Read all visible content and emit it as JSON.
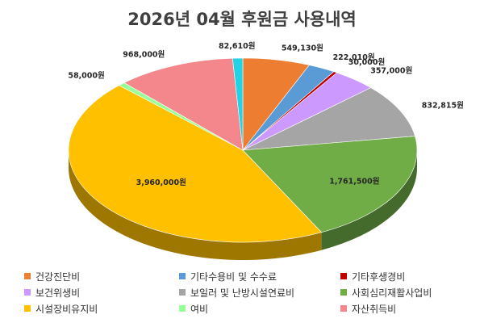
{
  "chart_data": {
    "type": "pie",
    "title": "2026년 04월 후원금 사용내역",
    "unit": "원",
    "legend_position": "bottom",
    "slices": [
      {
        "name": "건강진단비",
        "value": 549130,
        "label": "549,130원",
        "color": "#ED7D31"
      },
      {
        "name": "기타수용비 및 수수료",
        "value": 222010,
        "label": "222,010원",
        "color": "#5B9BD5"
      },
      {
        "name": "기타후생경비",
        "value": 30000,
        "label": "30,000원",
        "color": "#C00000"
      },
      {
        "name": "보건위생비",
        "value": 357000,
        "label": "357,000원",
        "color": "#CC99FF"
      },
      {
        "name": "보일러 및 난방시설연료비",
        "value": 832815,
        "label": "832,815원",
        "color": "#A5A5A5"
      },
      {
        "name": "사회심리재활사업비",
        "value": 1761500,
        "label": "1,761,500원",
        "color": "#70AD47"
      },
      {
        "name": "시설장비유지비",
        "value": 3960000,
        "label": "3,960,000원",
        "color": "#FFC000"
      },
      {
        "name": "여비",
        "value": 58000,
        "label": "58,000원",
        "color": "#99FF99"
      },
      {
        "name": "자산취득비",
        "value": 968000,
        "label": "968,000원",
        "color": "#F4878B"
      },
      {
        "name": "",
        "value": 82610,
        "label": "82,610원",
        "color": "#22D3E6"
      }
    ],
    "legend": [
      {
        "name": "건강진단비",
        "color": "#ED7D31"
      },
      {
        "name": "기타수용비 및 수수료",
        "color": "#5B9BD5"
      },
      {
        "name": "기타후생경비",
        "color": "#C00000"
      },
      {
        "name": "보건위생비",
        "color": "#CC99FF"
      },
      {
        "name": "보일러 및 난방시설연료비",
        "color": "#A5A5A5"
      },
      {
        "name": "사회심리재활사업비",
        "color": "#70AD47"
      },
      {
        "name": "시설장비유지비",
        "color": "#FFC000"
      },
      {
        "name": "여비",
        "color": "#99FF99"
      },
      {
        "name": "자산취득비",
        "color": "#F4878B"
      }
    ]
  }
}
